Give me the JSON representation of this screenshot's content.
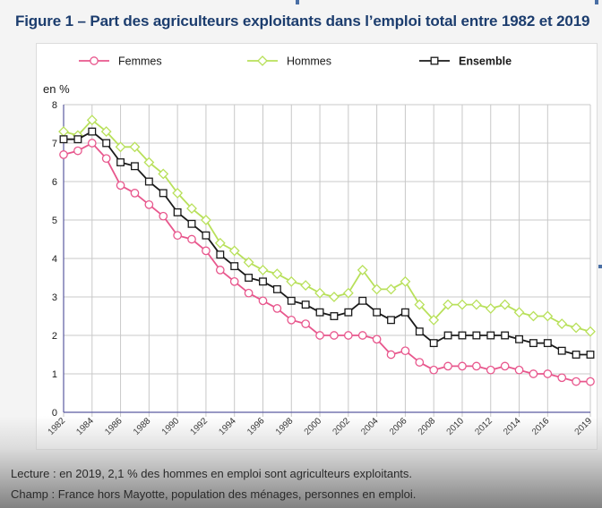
{
  "title": "Figure 1 – Part des agriculteurs exploitants dans l’emploi total entre 1982 et 2019",
  "notes": {
    "lecture": "Lecture : en 2019, 2,1 % des hommes en emploi sont agriculteurs exploitants.",
    "champ": "Champ : France hors Mayotte, population des ménages, personnes en emploi."
  },
  "chart_data": {
    "type": "line",
    "title": "Figure 1 – Part des agriculteurs exploitants dans l’emploi total entre 1982 et 2019",
    "xlabel": "",
    "ylabel": "en %",
    "ylim": [
      0,
      8
    ],
    "yticks": [
      "0",
      "1",
      "2",
      "3",
      "4",
      "5",
      "6",
      "7",
      "8"
    ],
    "xticks": [
      "1982",
      "1984",
      "1986",
      "1988",
      "1990",
      "1992",
      "1994",
      "1996",
      "1998",
      "2000",
      "2002",
      "2004",
      "2006",
      "2008",
      "2010",
      "2012",
      "2014",
      "2016",
      "2019"
    ],
    "grid": true,
    "legend_position": "top",
    "x": [
      1982,
      1983,
      1984,
      1985,
      1986,
      1987,
      1988,
      1989,
      1990,
      1991,
      1992,
      1993,
      1994,
      1995,
      1996,
      1997,
      1998,
      1999,
      2000,
      2001,
      2002,
      2003,
      2004,
      2005,
      2006,
      2007,
      2008,
      2009,
      2010,
      2011,
      2012,
      2013,
      2014,
      2015,
      2016,
      2017,
      2018,
      2019
    ],
    "series": [
      {
        "name": "Femmes",
        "color": "#e8578d",
        "marker": "circle",
        "values": [
          6.7,
          6.8,
          7.0,
          6.6,
          5.9,
          5.7,
          5.4,
          5.1,
          4.6,
          4.5,
          4.2,
          3.7,
          3.4,
          3.1,
          2.9,
          2.7,
          2.4,
          2.3,
          2.0,
          2.0,
          2.0,
          2.0,
          1.9,
          1.5,
          1.6,
          1.3,
          1.1,
          1.2,
          1.2,
          1.2,
          1.1,
          1.2,
          1.1,
          1.0,
          1.0,
          0.9,
          0.8,
          0.8
        ]
      },
      {
        "name": "Hommes",
        "color": "#b8e05a",
        "marker": "diamond",
        "values": [
          7.3,
          7.2,
          7.6,
          7.3,
          6.9,
          6.9,
          6.5,
          6.2,
          5.7,
          5.3,
          5.0,
          4.4,
          4.2,
          3.9,
          3.7,
          3.6,
          3.4,
          3.3,
          3.1,
          3.0,
          3.1,
          3.7,
          3.2,
          3.2,
          3.4,
          2.8,
          2.4,
          2.8,
          2.8,
          2.8,
          2.7,
          2.8,
          2.6,
          2.5,
          2.5,
          2.3,
          2.2,
          2.1
        ]
      },
      {
        "name": "Ensemble",
        "color": "#1a1a1a",
        "marker": "square",
        "bold_legend": true,
        "values": [
          7.1,
          7.1,
          7.3,
          7.0,
          6.5,
          6.4,
          6.0,
          5.7,
          5.2,
          4.9,
          4.6,
          4.1,
          3.8,
          3.5,
          3.4,
          3.2,
          2.9,
          2.8,
          2.6,
          2.5,
          2.6,
          2.9,
          2.6,
          2.4,
          2.6,
          2.1,
          1.8,
          2.0,
          2.0,
          2.0,
          2.0,
          2.0,
          1.9,
          1.8,
          1.8,
          1.6,
          1.5,
          1.5
        ]
      }
    ]
  },
  "colors": {
    "title": "#1c3d6e",
    "axis": "#5a5aa0",
    "grid": "#c8c8c8"
  }
}
